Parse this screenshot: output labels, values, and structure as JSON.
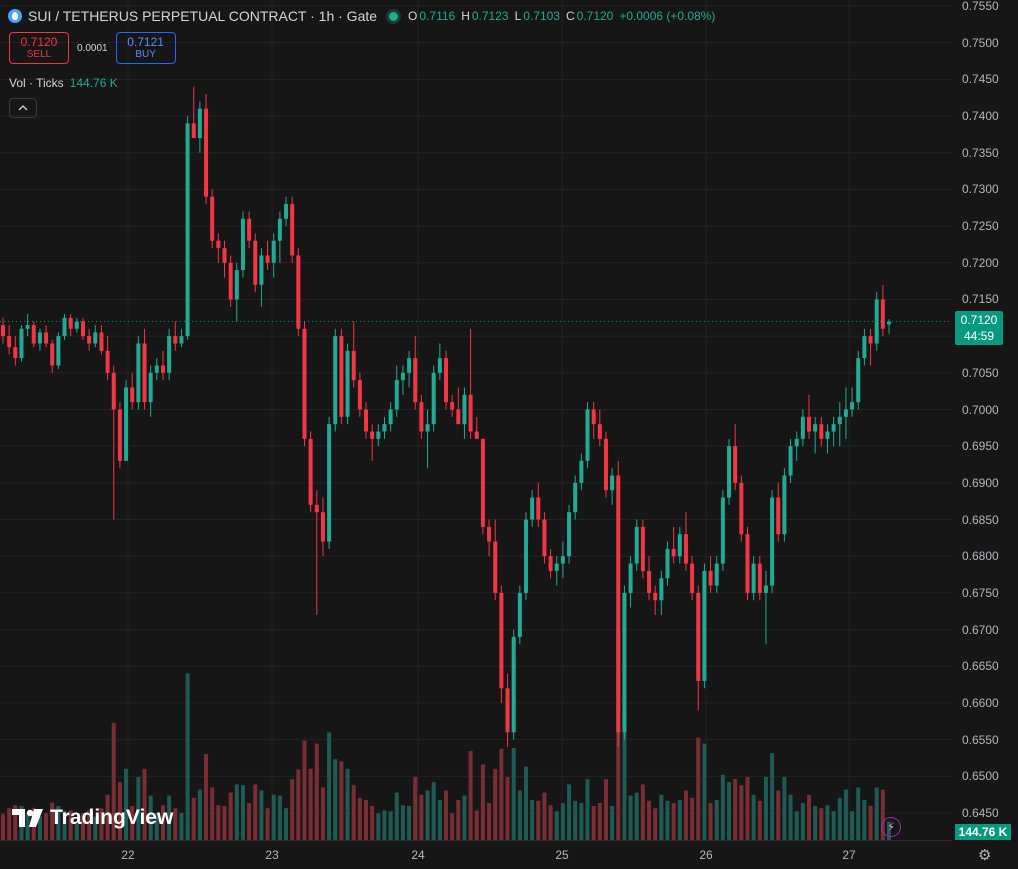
{
  "legend": {
    "symbol_title": "SUI / TETHERUS PERPETUAL CONTRACT · 1h · Gate",
    "ohlc": [
      {
        "key": "O",
        "value": "0.7116"
      },
      {
        "key": "H",
        "value": "0.7123"
      },
      {
        "key": "L",
        "value": "0.7103"
      },
      {
        "key": "C",
        "value": "0.7120"
      }
    ],
    "change": "+0.0006 (+0.08%)"
  },
  "trade": {
    "sell_price": "0.7120",
    "sell_label": "SELL",
    "spread": "0.0001",
    "buy_price": "0.7121",
    "buy_label": "BUY"
  },
  "volume": {
    "label": "Vol · Ticks",
    "value": "144.76 K"
  },
  "price_scale": {
    "ticks": [
      "0.7550",
      "0.7500",
      "0.7450",
      "0.7400",
      "0.7350",
      "0.7300",
      "0.7250",
      "0.7200",
      "0.7150",
      "0.7100",
      "0.7050",
      "0.7000",
      "0.6950",
      "0.6900",
      "0.6850",
      "0.6800",
      "0.6750",
      "0.6700",
      "0.6650",
      "0.6600",
      "0.6550",
      "0.6500",
      "0.6450"
    ],
    "last_price": "0.7120",
    "countdown": "44:59",
    "volume_label": "144.76 K"
  },
  "time_scale": {
    "ticks": [
      "22",
      "23",
      "24",
      "25",
      "26",
      "27"
    ]
  },
  "branding": {
    "logo_text": "TradingView"
  },
  "colors": {
    "up": "#22ab94",
    "down": "#f23645",
    "up_vol": "#1f5b55",
    "down_vol": "#7a2e34",
    "grid": "#232323"
  },
  "chart_data": {
    "type": "candlestick",
    "timeframe": "1h",
    "ylim": [
      0.643,
      0.756
    ],
    "last_price": 0.712,
    "candles": [
      [
        0.7115,
        0.7125,
        0.709,
        0.71
      ],
      [
        0.71,
        0.7115,
        0.7075,
        0.7085
      ],
      [
        0.7085,
        0.71,
        0.706,
        0.707
      ],
      [
        0.707,
        0.7115,
        0.7065,
        0.711
      ],
      [
        0.711,
        0.713,
        0.71,
        0.7115
      ],
      [
        0.7115,
        0.712,
        0.7085,
        0.709
      ],
      [
        0.709,
        0.711,
        0.708,
        0.7105
      ],
      [
        0.7105,
        0.7115,
        0.7085,
        0.709
      ],
      [
        0.709,
        0.7095,
        0.705,
        0.706
      ],
      [
        0.706,
        0.7105,
        0.7055,
        0.71
      ],
      [
        0.71,
        0.713,
        0.7095,
        0.7125
      ],
      [
        0.7125,
        0.713,
        0.71,
        0.711
      ],
      [
        0.711,
        0.7125,
        0.7105,
        0.712
      ],
      [
        0.712,
        0.7125,
        0.7095,
        0.71
      ],
      [
        0.71,
        0.711,
        0.708,
        0.709
      ],
      [
        0.709,
        0.7115,
        0.7085,
        0.7105
      ],
      [
        0.7105,
        0.7115,
        0.7075,
        0.708
      ],
      [
        0.708,
        0.71,
        0.704,
        0.705
      ],
      [
        0.705,
        0.706,
        0.685,
        0.7
      ],
      [
        0.7,
        0.701,
        0.692,
        0.693
      ],
      [
        0.693,
        0.704,
        0.693,
        0.703
      ],
      [
        0.703,
        0.705,
        0.7,
        0.701
      ],
      [
        0.701,
        0.71,
        0.7,
        0.709
      ],
      [
        0.709,
        0.711,
        0.7,
        0.701
      ],
      [
        0.701,
        0.706,
        0.699,
        0.705
      ],
      [
        0.705,
        0.707,
        0.704,
        0.706
      ],
      [
        0.706,
        0.708,
        0.704,
        0.705
      ],
      [
        0.705,
        0.711,
        0.704,
        0.71
      ],
      [
        0.71,
        0.712,
        0.708,
        0.709
      ],
      [
        0.709,
        0.711,
        0.7085,
        0.71
      ],
      [
        0.71,
        0.74,
        0.7095,
        0.739
      ],
      [
        0.739,
        0.744,
        0.738,
        0.737
      ],
      [
        0.737,
        0.742,
        0.735,
        0.741
      ],
      [
        0.741,
        0.743,
        0.728,
        0.729
      ],
      [
        0.729,
        0.73,
        0.722,
        0.723
      ],
      [
        0.723,
        0.724,
        0.72,
        0.722
      ],
      [
        0.722,
        0.723,
        0.718,
        0.72
      ],
      [
        0.72,
        0.721,
        0.714,
        0.715
      ],
      [
        0.715,
        0.72,
        0.712,
        0.719
      ],
      [
        0.719,
        0.727,
        0.718,
        0.726
      ],
      [
        0.726,
        0.727,
        0.722,
        0.723
      ],
      [
        0.723,
        0.724,
        0.716,
        0.717
      ],
      [
        0.717,
        0.722,
        0.714,
        0.721
      ],
      [
        0.721,
        0.723,
        0.719,
        0.72
      ],
      [
        0.72,
        0.724,
        0.718,
        0.723
      ],
      [
        0.723,
        0.727,
        0.72,
        0.726
      ],
      [
        0.726,
        0.729,
        0.725,
        0.728
      ],
      [
        0.728,
        0.729,
        0.72,
        0.721
      ],
      [
        0.721,
        0.722,
        0.71,
        0.711
      ],
      [
        0.711,
        0.712,
        0.695,
        0.696
      ],
      [
        0.696,
        0.697,
        0.686,
        0.687
      ],
      [
        0.687,
        0.689,
        0.672,
        0.686
      ],
      [
        0.686,
        0.688,
        0.68,
        0.682
      ],
      [
        0.682,
        0.699,
        0.681,
        0.698
      ],
      [
        0.698,
        0.711,
        0.697,
        0.71
      ],
      [
        0.71,
        0.711,
        0.698,
        0.699
      ],
      [
        0.699,
        0.709,
        0.698,
        0.708
      ],
      [
        0.708,
        0.712,
        0.703,
        0.704
      ],
      [
        0.704,
        0.705,
        0.699,
        0.7
      ],
      [
        0.7,
        0.701,
        0.696,
        0.697
      ],
      [
        0.697,
        0.698,
        0.693,
        0.696
      ],
      [
        0.696,
        0.698,
        0.695,
        0.697
      ],
      [
        0.697,
        0.699,
        0.696,
        0.698
      ],
      [
        0.698,
        0.701,
        0.697,
        0.7
      ],
      [
        0.7,
        0.706,
        0.699,
        0.704
      ],
      [
        0.704,
        0.706,
        0.702,
        0.705
      ],
      [
        0.705,
        0.708,
        0.703,
        0.707
      ],
      [
        0.707,
        0.71,
        0.7,
        0.701
      ],
      [
        0.701,
        0.702,
        0.696,
        0.697
      ],
      [
        0.697,
        0.7,
        0.692,
        0.698
      ],
      [
        0.698,
        0.706,
        0.697,
        0.705
      ],
      [
        0.705,
        0.709,
        0.704,
        0.707
      ],
      [
        0.707,
        0.708,
        0.7,
        0.701
      ],
      [
        0.701,
        0.702,
        0.699,
        0.7
      ],
      [
        0.7,
        0.703,
        0.698,
        0.698
      ],
      [
        0.698,
        0.703,
        0.696,
        0.702
      ],
      [
        0.702,
        0.711,
        0.696,
        0.697
      ],
      [
        0.697,
        0.699,
        0.696,
        0.696
      ],
      [
        0.696,
        0.696,
        0.683,
        0.684
      ],
      [
        0.684,
        0.685,
        0.68,
        0.682
      ],
      [
        0.682,
        0.685,
        0.674,
        0.675
      ],
      [
        0.675,
        0.676,
        0.66,
        0.662
      ],
      [
        0.662,
        0.664,
        0.654,
        0.656
      ],
      [
        0.656,
        0.67,
        0.655,
        0.669
      ],
      [
        0.669,
        0.676,
        0.668,
        0.675
      ],
      [
        0.675,
        0.686,
        0.674,
        0.685
      ],
      [
        0.685,
        0.689,
        0.684,
        0.688
      ],
      [
        0.688,
        0.69,
        0.684,
        0.685
      ],
      [
        0.685,
        0.686,
        0.679,
        0.68
      ],
      [
        0.68,
        0.681,
        0.677,
        0.678
      ],
      [
        0.678,
        0.68,
        0.676,
        0.679
      ],
      [
        0.679,
        0.682,
        0.677,
        0.68
      ],
      [
        0.68,
        0.687,
        0.679,
        0.686
      ],
      [
        0.686,
        0.691,
        0.685,
        0.69
      ],
      [
        0.69,
        0.694,
        0.689,
        0.693
      ],
      [
        0.693,
        0.701,
        0.692,
        0.7
      ],
      [
        0.7,
        0.701,
        0.696,
        0.698
      ],
      [
        0.698,
        0.7,
        0.695,
        0.696
      ],
      [
        0.696,
        0.697,
        0.688,
        0.689
      ],
      [
        0.689,
        0.692,
        0.687,
        0.691
      ],
      [
        0.691,
        0.693,
        0.654,
        0.656
      ],
      [
        0.656,
        0.676,
        0.655,
        0.675
      ],
      [
        0.675,
        0.68,
        0.673,
        0.679
      ],
      [
        0.679,
        0.685,
        0.678,
        0.684
      ],
      [
        0.684,
        0.685,
        0.677,
        0.678
      ],
      [
        0.678,
        0.68,
        0.674,
        0.675
      ],
      [
        0.675,
        0.676,
        0.672,
        0.674
      ],
      [
        0.674,
        0.678,
        0.672,
        0.677
      ],
      [
        0.677,
        0.682,
        0.676,
        0.681
      ],
      [
        0.681,
        0.684,
        0.679,
        0.68
      ],
      [
        0.68,
        0.684,
        0.679,
        0.683
      ],
      [
        0.683,
        0.686,
        0.678,
        0.679
      ],
      [
        0.679,
        0.68,
        0.674,
        0.675
      ],
      [
        0.675,
        0.676,
        0.659,
        0.663
      ],
      [
        0.663,
        0.679,
        0.662,
        0.678
      ],
      [
        0.678,
        0.68,
        0.675,
        0.676
      ],
      [
        0.676,
        0.68,
        0.675,
        0.679
      ],
      [
        0.679,
        0.689,
        0.678,
        0.688
      ],
      [
        0.688,
        0.696,
        0.687,
        0.695
      ],
      [
        0.695,
        0.698,
        0.689,
        0.69
      ],
      [
        0.69,
        0.691,
        0.682,
        0.683
      ],
      [
        0.683,
        0.684,
        0.674,
        0.675
      ],
      [
        0.675,
        0.68,
        0.674,
        0.679
      ],
      [
        0.679,
        0.68,
        0.674,
        0.675
      ],
      [
        0.675,
        0.678,
        0.668,
        0.676
      ],
      [
        0.676,
        0.689,
        0.675,
        0.688
      ],
      [
        0.688,
        0.69,
        0.682,
        0.683
      ],
      [
        0.683,
        0.692,
        0.682,
        0.691
      ],
      [
        0.691,
        0.696,
        0.69,
        0.695
      ],
      [
        0.695,
        0.697,
        0.693,
        0.696
      ],
      [
        0.696,
        0.7,
        0.695,
        0.699
      ],
      [
        0.699,
        0.702,
        0.696,
        0.697
      ],
      [
        0.697,
        0.699,
        0.694,
        0.698
      ],
      [
        0.698,
        0.699,
        0.695,
        0.696
      ],
      [
        0.696,
        0.698,
        0.694,
        0.697
      ],
      [
        0.697,
        0.699,
        0.695,
        0.698
      ],
      [
        0.698,
        0.701,
        0.695,
        0.699
      ],
      [
        0.699,
        0.703,
        0.696,
        0.7
      ],
      [
        0.7,
        0.703,
        0.699,
        0.701
      ],
      [
        0.701,
        0.708,
        0.7,
        0.707
      ],
      [
        0.707,
        0.711,
        0.706,
        0.71
      ],
      [
        0.71,
        0.711,
        0.706,
        0.709
      ],
      [
        0.709,
        0.716,
        0.708,
        0.715
      ],
      [
        0.715,
        0.717,
        0.71,
        0.711
      ],
      [
        0.7116,
        0.7123,
        0.7103,
        0.712
      ]
    ]
  }
}
